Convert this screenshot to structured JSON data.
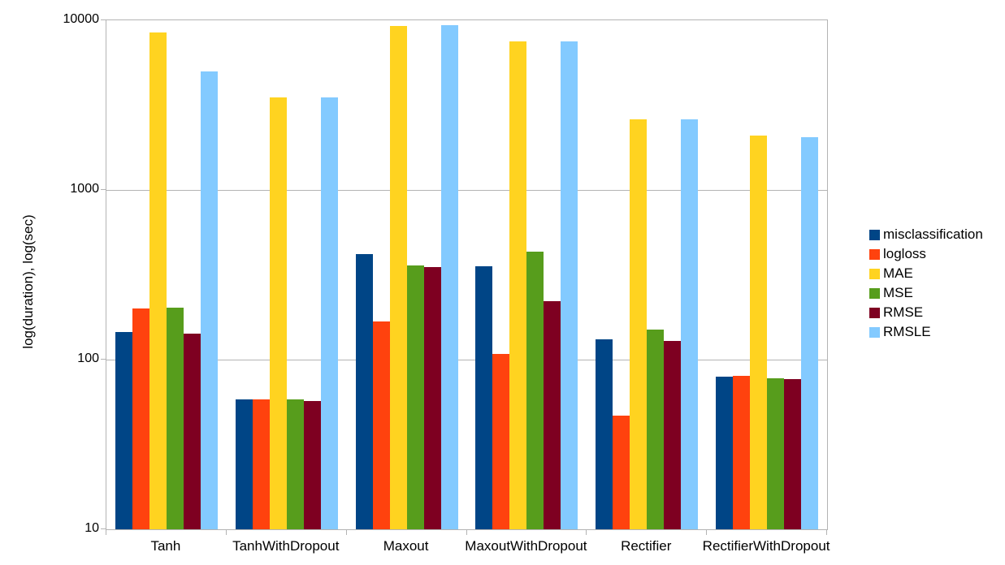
{
  "chart_data": {
    "type": "bar",
    "title": "",
    "xlabel": "",
    "ylabel": "log(duration), log(sec)",
    "y_scale": "log",
    "ylim": [
      10,
      10000
    ],
    "y_ticks": [
      10,
      100,
      1000,
      10000
    ],
    "y_tick_labels": [
      "10",
      "100",
      "1000",
      "10000"
    ],
    "grid": true,
    "legend_position": "right",
    "categories": [
      "Tanh",
      "TanhWithDropout",
      "Maxout",
      "MaxoutWithDropout",
      "Rectifier",
      "RectifierWithDropout"
    ],
    "series": [
      {
        "name": "misclassification",
        "color": "#004586",
        "values": [
          145,
          58,
          420,
          355,
          131,
          79
        ]
      },
      {
        "name": "logloss",
        "color": "#FF420E",
        "values": [
          200,
          58,
          168,
          108,
          47,
          80
        ]
      },
      {
        "name": "MAE",
        "color": "#FFD320",
        "values": [
          8500,
          3500,
          9300,
          7500,
          2600,
          2100
        ]
      },
      {
        "name": "MSE",
        "color": "#579D1C",
        "values": [
          203,
          58,
          360,
          435,
          150,
          78
        ]
      },
      {
        "name": "RMSE",
        "color": "#7E0021",
        "values": [
          142,
          57,
          351,
          222,
          129,
          77
        ]
      },
      {
        "name": "RMSLE",
        "color": "#83CAFF",
        "values": [
          5000,
          3520,
          9400,
          7480,
          2600,
          2050
        ]
      }
    ],
    "colors": {
      "axis": "#b3b3b3",
      "grid": "#b3b3b3",
      "text": "#000000",
      "background": "#ffffff"
    }
  }
}
